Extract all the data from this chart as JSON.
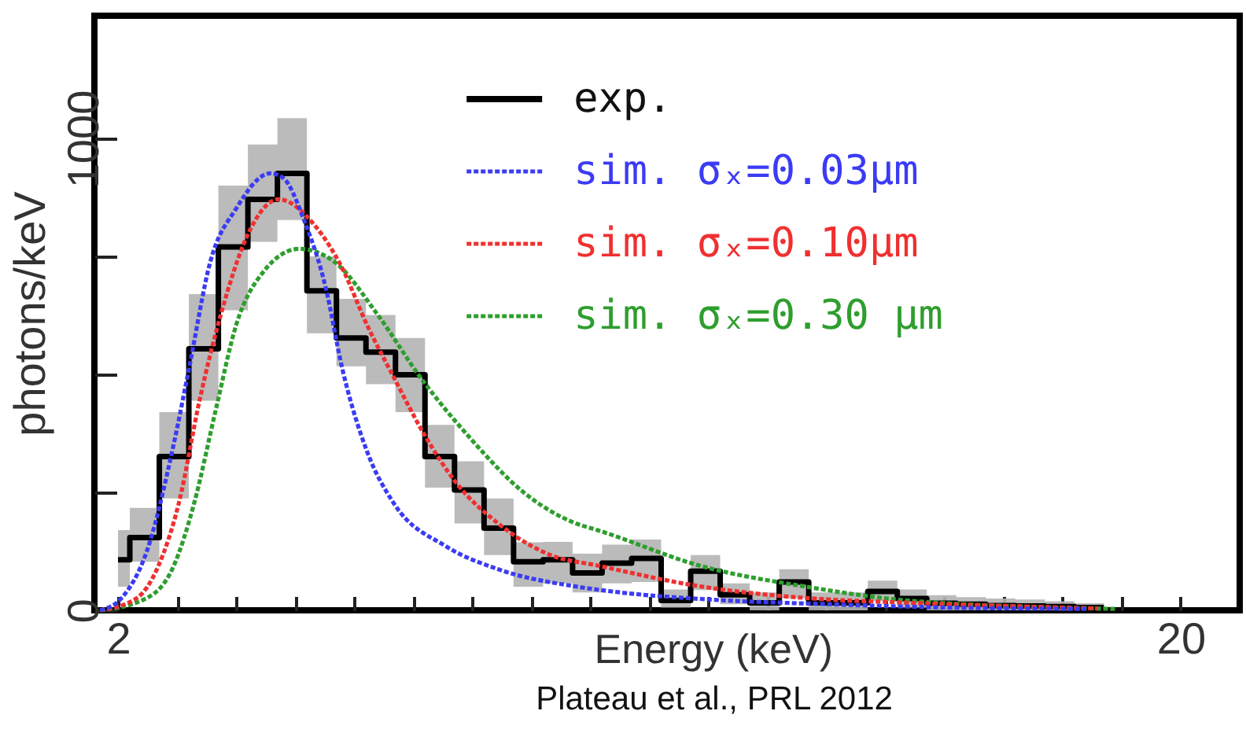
{
  "chart_data": {
    "type": "step",
    "xlabel": "Energy (keV)",
    "ylabel": "photons/keV",
    "annotations": [
      "Plateau et al., PRL 2012"
    ],
    "xlim": [
      1.6,
      21
    ],
    "xticks": [
      2,
      {
        "value": 3,
        "label": null
      },
      {
        "value": 4,
        "label": null
      },
      {
        "value": 5,
        "label": null
      },
      {
        "value": 6,
        "label": null
      },
      {
        "value": 7,
        "label": null
      },
      {
        "value": 8,
        "label": null
      },
      {
        "value": 9,
        "label": null
      },
      {
        "value": 10,
        "label": null
      },
      {
        "value": 11,
        "label": null
      },
      {
        "value": 12,
        "label": null
      },
      {
        "value": 13,
        "label": null
      },
      {
        "value": 14,
        "label": null
      },
      {
        "value": 15,
        "label": null
      },
      {
        "value": 16,
        "label": null
      },
      {
        "value": 17,
        "label": null
      },
      {
        "value": 18,
        "label": null
      },
      {
        "value": 19,
        "label": null
      },
      20
    ],
    "ylim": [
      0,
      1260
    ],
    "yticks": [
      0,
      {
        "value": 250,
        "label": null
      },
      {
        "value": 500,
        "label": null
      },
      {
        "value": 750,
        "label": null
      },
      1000
    ],
    "legend": "top right",
    "series": [
      {
        "name": "exp.",
        "color": "#000000",
        "x": [
          2.0,
          2.2,
          2.7,
          3.2,
          3.7,
          4.2,
          4.7,
          5.2,
          5.7,
          6.2,
          6.7,
          7.2,
          7.7,
          8.2,
          8.7,
          9.2,
          9.7,
          10.2,
          10.7,
          11.2,
          11.7,
          12.2,
          12.7,
          13.2,
          13.7,
          14.2,
          14.7,
          15.2,
          15.7,
          16.2,
          16.7,
          17.2,
          17.7,
          18.2,
          18.7
        ],
        "values": [
          107,
          154,
          326,
          554,
          770,
          871,
          926,
          677,
          577,
          547,
          499,
          326,
          255,
          174,
          103,
          107,
          79,
          100,
          110,
          21,
          83,
          33,
          16,
          60,
          16,
          16,
          40,
          25,
          15,
          13,
          10,
          9,
          8,
          6,
          6
        ],
        "lower": [
          50,
          103,
          237,
          444,
          636,
          781,
          827,
          587,
          517,
          479,
          420,
          260,
          184,
          117,
          50,
          57,
          38,
          57,
          60,
          6,
          43,
          13,
          0,
          26,
          0,
          0,
          19,
          6,
          0,
          0,
          0,
          0,
          0,
          0,
          0
        ],
        "upper": [
          170,
          217,
          420,
          670,
          900,
          987,
          1043,
          750,
          660,
          626,
          577,
          393,
          316,
          237,
          144,
          145,
          120,
          139,
          150,
          44,
          117,
          57,
          38,
          87,
          38,
          38,
          63,
          44,
          32,
          28,
          25,
          23,
          19,
          15,
          15
        ]
      },
      {
        "name": "sim. σₓ=0.03μm",
        "type": "line",
        "line_style": "dashed",
        "color": "#3b3bf5",
        "x": [
          1.7,
          2.06,
          2.49,
          2.94,
          3.21,
          3.56,
          4.0,
          4.58,
          4.8,
          5.15,
          5.52,
          5.79,
          6.22,
          6.67,
          7.55,
          8.44,
          9.78,
          10.5,
          12,
          14,
          16,
          18.4
        ],
        "values": [
          0,
          26,
          126,
          350,
          517,
          737,
          851,
          926,
          916,
          827,
          683,
          517,
          336,
          227,
          136,
          87,
          50,
          38,
          23,
          13,
          6,
          3
        ]
      },
      {
        "name": "sim. σₓ=0.10μm",
        "type": "line",
        "line_style": "dashed",
        "color": "#f03030",
        "x": [
          1.7,
          2.32,
          2.68,
          3.03,
          3.39,
          3.74,
          4.19,
          4.72,
          5.33,
          5.79,
          6.22,
          6.67,
          7.2,
          7.73,
          8.45,
          9.33,
          10.12,
          11.9,
          13.66,
          15.4,
          18.6
        ],
        "values": [
          0,
          26,
          93,
          227,
          450,
          626,
          794,
          871,
          816,
          727,
          604,
          494,
          370,
          270,
          183,
          117,
          95,
          50,
          26,
          16,
          4
        ]
      },
      {
        "name": "sim. σₓ=0.30 μm",
        "type": "line",
        "line_style": "dashed",
        "color": "#2e9e2e",
        "x": [
          1.7,
          2.49,
          2.94,
          3.29,
          3.66,
          4.0,
          4.46,
          5.07,
          5.68,
          6.4,
          7.12,
          8.0,
          8.88,
          9.78,
          10.12,
          11.9,
          13.66,
          15.44,
          18.9
        ],
        "values": [
          0,
          26,
          93,
          227,
          427,
          604,
          717,
          766,
          737,
          626,
          494,
          360,
          249,
          183,
          170,
          93,
          50,
          20,
          3
        ]
      }
    ]
  }
}
